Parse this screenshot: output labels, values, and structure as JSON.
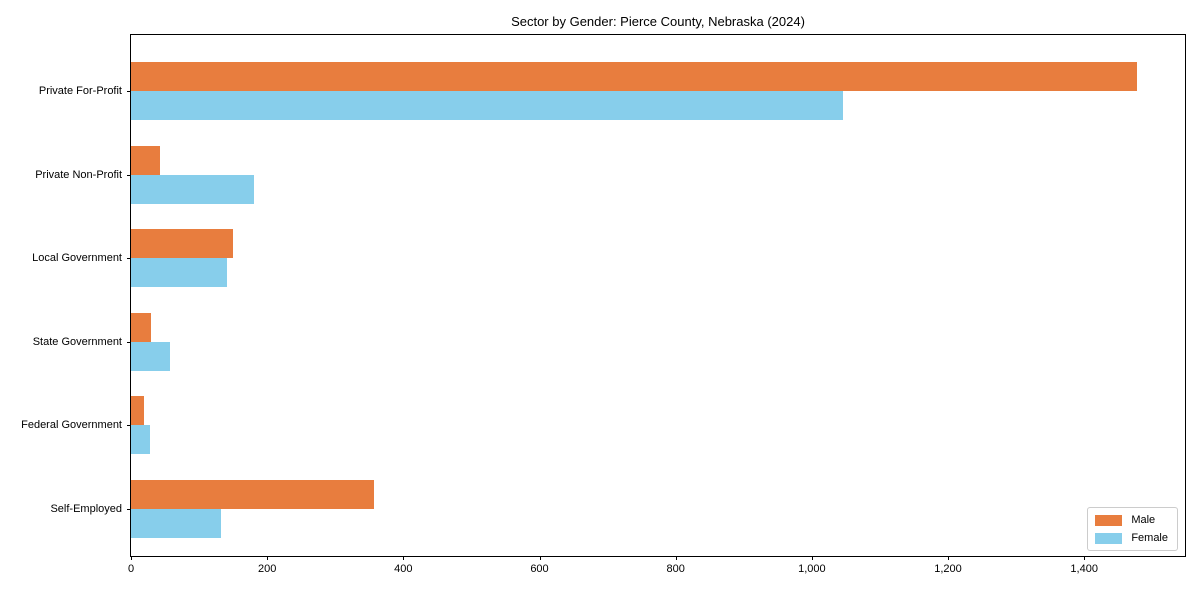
{
  "chart_data": {
    "type": "bar",
    "orientation": "horizontal",
    "title": "Sector by Gender: Pierce County, Nebraska (2024)",
    "categories": [
      "Private For-Profit",
      "Private Non-Profit",
      "Local Government",
      "State Government",
      "Federal Government",
      "Self-Employed"
    ],
    "series": [
      {
        "name": "Male",
        "color": "#e87d3e",
        "values": [
          1477,
          43,
          150,
          29,
          19,
          357
        ]
      },
      {
        "name": "Female",
        "color": "#87ceeb",
        "values": [
          1046,
          181,
          141,
          57,
          28,
          132
        ]
      }
    ],
    "xlabel": "",
    "ylabel": "",
    "xlim": [
      0,
      1551
    ],
    "xticks": {
      "values": [
        0,
        200,
        400,
        600,
        800,
        1000,
        1200,
        1400
      ],
      "labels": [
        "0",
        "200",
        "400",
        "600",
        "800",
        "1,000",
        "1,200",
        "1,400"
      ]
    },
    "grid": false,
    "legend_position": "lower right",
    "axis_color": "#000000"
  }
}
